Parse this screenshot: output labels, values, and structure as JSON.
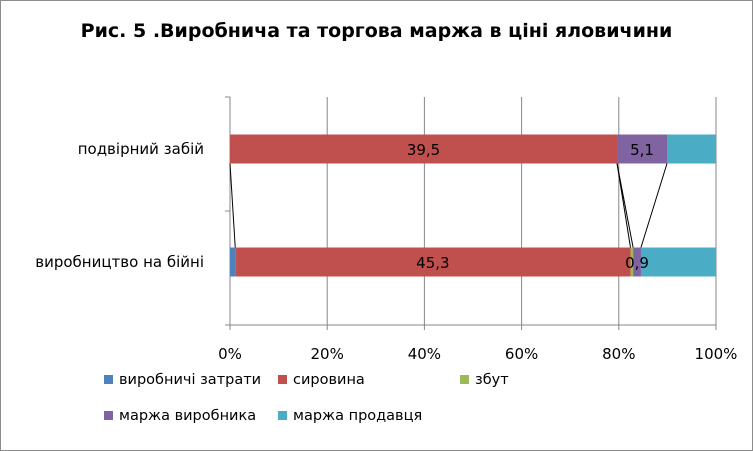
{
  "chart_data": {
    "type": "bar",
    "orientation": "horizontal",
    "stacked": "percent",
    "title": "Рис. 5 .Виробнича та торгова маржа в ціні яловичини",
    "categories": [
      "подвірний забій",
      "виробництво на бійні"
    ],
    "series": [
      {
        "name": "виробничі затрати",
        "color": "#4f81bd",
        "values": [
          0,
          0.6
        ],
        "labels": [
          "",
          ""
        ]
      },
      {
        "name": "сировина",
        "color": "#c0504d",
        "values": [
          39.5,
          45.3
        ],
        "labels": [
          "39,5",
          "45,3"
        ]
      },
      {
        "name": "збут",
        "color": "#9bbb59",
        "values": [
          0,
          0.3
        ],
        "labels": [
          "",
          ""
        ]
      },
      {
        "name": "маржа виробника",
        "color": "#8064a2",
        "values": [
          5.1,
          0.9
        ],
        "labels": [
          "5,1",
          "0,9"
        ]
      },
      {
        "name": "маржа продавця",
        "color": "#4bacc6",
        "values": [
          5.0,
          8.6
        ],
        "labels": [
          "",
          ""
        ]
      }
    ],
    "xaxis": {
      "ticks": [
        "0%",
        "20%",
        "40%",
        "60%",
        "80%",
        "100%"
      ],
      "range": [
        0,
        100
      ]
    },
    "grid": true,
    "series_lines": true,
    "legend_position": "bottom"
  }
}
